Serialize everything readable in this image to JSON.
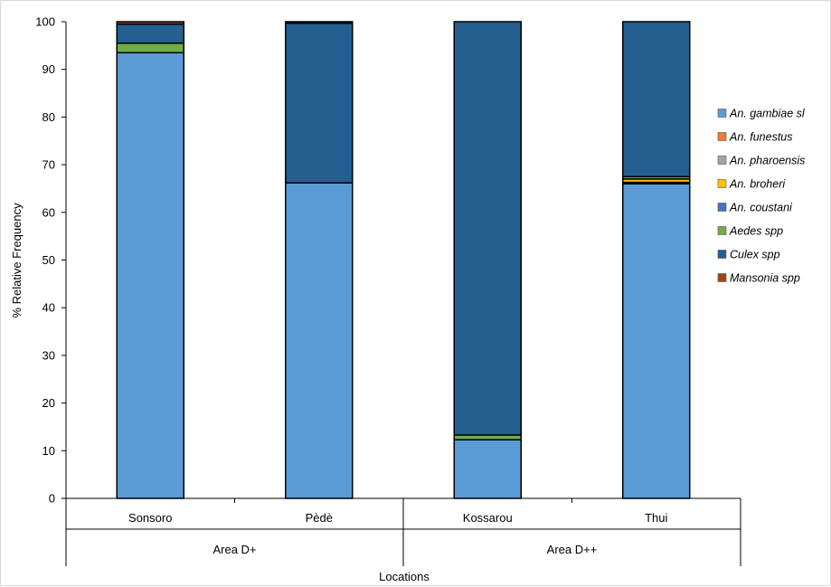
{
  "chart_data": {
    "type": "bar",
    "stacked": true,
    "title": "",
    "xlabel": "Locations",
    "ylabel": "% Relative Frequency",
    "ylim": [
      0,
      100
    ],
    "yticks": [
      0,
      10,
      20,
      30,
      40,
      50,
      60,
      70,
      80,
      90,
      100
    ],
    "grid": false,
    "legend_position": "right",
    "categories": [
      "Sonsoro",
      "Pèdè",
      "Kossarou",
      "Thui"
    ],
    "groups": [
      {
        "label": "Area D+",
        "categories": [
          "Sonsoro",
          "Pèdè"
        ]
      },
      {
        "label": "Area D++",
        "categories": [
          "Kossarou",
          "Thui"
        ]
      }
    ],
    "series": [
      {
        "name": "An. gambiae sl",
        "color": "#5b9bd5",
        "values": [
          93.5,
          66.2,
          12.3,
          66.0
        ]
      },
      {
        "name": "An. funestus",
        "color": "#ed7d31",
        "values": [
          0,
          0,
          0,
          0
        ]
      },
      {
        "name": "An. pharoensis",
        "color": "#a5a5a5",
        "values": [
          0,
          0,
          0,
          0.3
        ]
      },
      {
        "name": "An. broheri",
        "color": "#ffc000",
        "values": [
          0,
          0,
          0,
          0.7
        ]
      },
      {
        "name": "An. coustani",
        "color": "#4472c4",
        "values": [
          0,
          0,
          0,
          0
        ]
      },
      {
        "name": "Aedes spp",
        "color": "#70ad47",
        "values": [
          2.0,
          0,
          1.0,
          0.5
        ]
      },
      {
        "name": "Culex spp",
        "color": "#255e91",
        "values": [
          4.0,
          33.5,
          86.7,
          32.5
        ]
      },
      {
        "name": "Mansonia spp",
        "color": "#9e480e",
        "values": [
          0.5,
          0.3,
          0,
          0
        ]
      }
    ]
  }
}
